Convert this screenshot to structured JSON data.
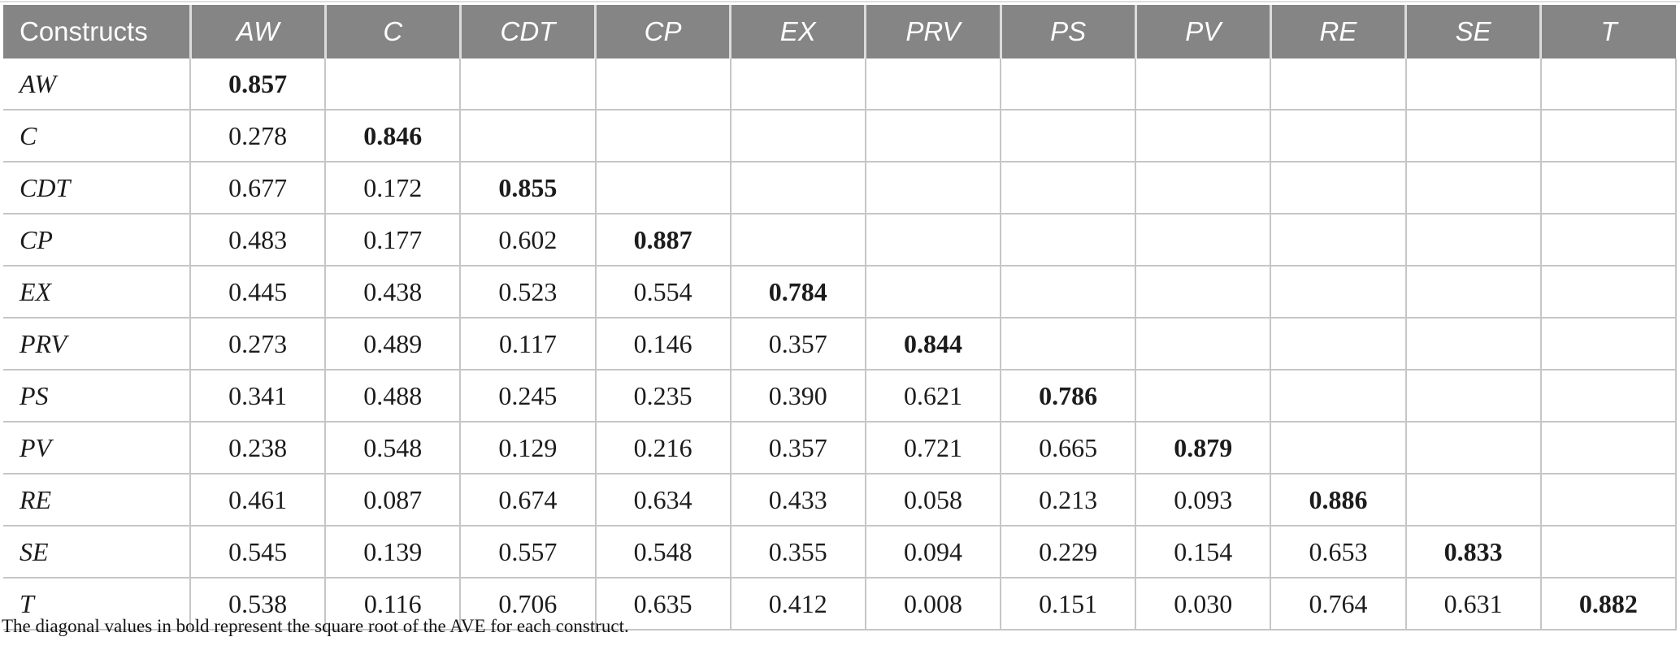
{
  "table": {
    "header": [
      "Constructs",
      "AW",
      "C",
      "CDT",
      "CP",
      "EX",
      "PRV",
      "PS",
      "PV",
      "RE",
      "SE",
      "T"
    ],
    "rows": [
      {
        "label": "AW",
        "values": [
          "0.857"
        ]
      },
      {
        "label": "C",
        "values": [
          "0.278",
          "0.846"
        ]
      },
      {
        "label": "CDT",
        "values": [
          "0.677",
          "0.172",
          "0.855"
        ]
      },
      {
        "label": "CP",
        "values": [
          "0.483",
          "0.177",
          "0.602",
          "0.887"
        ]
      },
      {
        "label": "EX",
        "values": [
          "0.445",
          "0.438",
          "0.523",
          "0.554",
          "0.784"
        ]
      },
      {
        "label": "PRV",
        "values": [
          "0.273",
          "0.489",
          "0.117",
          "0.146",
          "0.357",
          "0.844"
        ]
      },
      {
        "label": "PS",
        "values": [
          "0.341",
          "0.488",
          "0.245",
          "0.235",
          "0.390",
          "0.621",
          "0.786"
        ]
      },
      {
        "label": "PV",
        "values": [
          "0.238",
          "0.548",
          "0.129",
          "0.216",
          "0.357",
          "0.721",
          "0.665",
          "0.879"
        ]
      },
      {
        "label": "RE",
        "values": [
          "0.461",
          "0.087",
          "0.674",
          "0.634",
          "0.433",
          "0.058",
          "0.213",
          "0.093",
          "0.886"
        ]
      },
      {
        "label": "SE",
        "values": [
          "0.545",
          "0.139",
          "0.557",
          "0.548",
          "0.355",
          "0.094",
          "0.229",
          "0.154",
          "0.653",
          "0.833"
        ]
      },
      {
        "label": "T",
        "values": [
          "0.538",
          "0.116",
          "0.706",
          "0.635",
          "0.412",
          "0.008",
          "0.151",
          "0.030",
          "0.764",
          "0.631",
          "0.882"
        ]
      }
    ],
    "footnote": "The diagonal values in bold represent the square root of the AVE for each construct."
  },
  "colors": {
    "header_bg": "#858585",
    "header_text": "#ffffff",
    "header_divider": "#dcdcdc",
    "grid_line": "#c6c6c6",
    "body_text": "#1c1c1c"
  }
}
